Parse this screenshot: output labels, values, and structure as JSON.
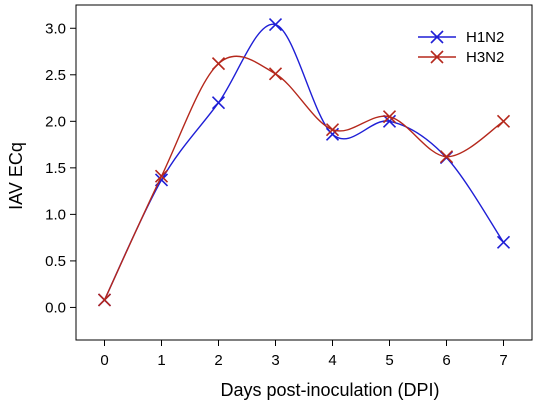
{
  "chart_data": {
    "type": "line",
    "title": "",
    "xlabel": "Days post-inoculation (DPI)",
    "ylabel": "IAV ECq",
    "x": [
      0,
      1,
      2,
      3,
      4,
      5,
      6,
      7
    ],
    "xlim": [
      -0.5,
      7.5
    ],
    "ylim": [
      -0.35,
      3.25
    ],
    "xticks": [
      "0",
      "1",
      "2",
      "3",
      "4",
      "5",
      "6",
      "7"
    ],
    "yticks": [
      "0.0",
      "0.5",
      "1.0",
      "1.5",
      "2.0",
      "2.5",
      "3.0"
    ],
    "grid": false,
    "legend_position": "top-right",
    "marker": "x",
    "series": [
      {
        "name": "H1N2",
        "color": "#1f1fd6",
        "values": [
          0.08,
          1.37,
          2.2,
          3.04,
          1.86,
          2.0,
          1.61,
          0.7
        ]
      },
      {
        "name": "H3N2",
        "color": "#b5281c",
        "values": [
          0.08,
          1.41,
          2.62,
          2.51,
          1.91,
          2.05,
          1.62,
          2.0
        ]
      }
    ]
  }
}
